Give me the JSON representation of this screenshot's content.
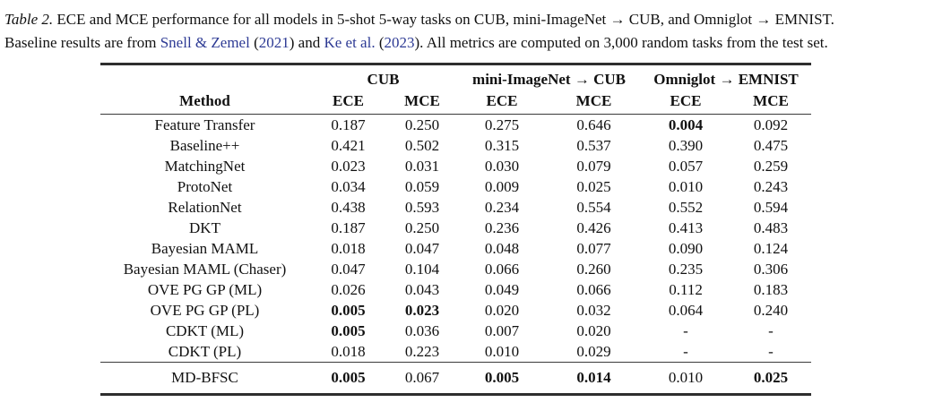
{
  "caption": {
    "label": "Table 2.",
    "body1": "ECE and MCE performance for all models in 5-shot 5-way tasks on CUB, mini-ImageNet → CUB, and Omniglot → EMNIST.",
    "body2_before": "Baseline results are from",
    "link1": "Snell & Zemel",
    "open1": "(",
    "year1": "2021",
    "close1": ") and",
    "link2": "Ke et al.",
    "open2": "(",
    "year2": "2023",
    "close2": ").",
    "body2_after": "All metrics are computed on 3,000 random tasks from the test set.",
    "link_color": "#2d3a94"
  },
  "table": {
    "groups": [
      {
        "label": "CUB"
      },
      {
        "label": "mini-ImageNet → CUB"
      },
      {
        "label": "Omniglot → EMNIST"
      }
    ],
    "method_header": "Method",
    "metric_headers": [
      "ECE",
      "MCE",
      "ECE",
      "MCE",
      "ECE",
      "MCE"
    ],
    "rows": [
      {
        "method": "Feature Transfer",
        "values": [
          "0.187",
          "0.250",
          "0.275",
          "0.646",
          "0.004",
          "0.092"
        ],
        "bold": [
          4
        ]
      },
      {
        "method": "Baseline++",
        "values": [
          "0.421",
          "0.502",
          "0.315",
          "0.537",
          "0.390",
          "0.475"
        ],
        "bold": []
      },
      {
        "method": "MatchingNet",
        "values": [
          "0.023",
          "0.031",
          "0.030",
          "0.079",
          "0.057",
          "0.259"
        ],
        "bold": []
      },
      {
        "method": "ProtoNet",
        "values": [
          "0.034",
          "0.059",
          "0.009",
          "0.025",
          "0.010",
          "0.243"
        ],
        "bold": []
      },
      {
        "method": "RelationNet",
        "values": [
          "0.438",
          "0.593",
          "0.234",
          "0.554",
          "0.552",
          "0.594"
        ],
        "bold": []
      },
      {
        "method": "DKT",
        "values": [
          "0.187",
          "0.250",
          "0.236",
          "0.426",
          "0.413",
          "0.483"
        ],
        "bold": []
      },
      {
        "method": "Bayesian MAML",
        "values": [
          "0.018",
          "0.047",
          "0.048",
          "0.077",
          "0.090",
          "0.124"
        ],
        "bold": []
      },
      {
        "method": "Bayesian MAML (Chaser)",
        "values": [
          "0.047",
          "0.104",
          "0.066",
          "0.260",
          "0.235",
          "0.306"
        ],
        "bold": []
      },
      {
        "method": "OVE PG GP (ML)",
        "values": [
          "0.026",
          "0.043",
          "0.049",
          "0.066",
          "0.112",
          "0.183"
        ],
        "bold": []
      },
      {
        "method": "OVE PG GP (PL)",
        "values": [
          "0.005",
          "0.023",
          "0.020",
          "0.032",
          "0.064",
          "0.240"
        ],
        "bold": [
          0,
          1
        ]
      },
      {
        "method": "CDKT (ML)",
        "values": [
          "0.005",
          "0.036",
          "0.007",
          "0.020",
          "-",
          "-"
        ],
        "bold": [
          0
        ]
      },
      {
        "method": "CDKT (PL)",
        "values": [
          "0.018",
          "0.223",
          "0.010",
          "0.029",
          "-",
          "-"
        ],
        "bold": []
      },
      {
        "method": "MD-BFSC",
        "values": [
          "0.005",
          "0.067",
          "0.005",
          "0.014",
          "0.010",
          "0.025"
        ],
        "bold": [
          0,
          2,
          3,
          5
        ],
        "final": true
      }
    ]
  }
}
